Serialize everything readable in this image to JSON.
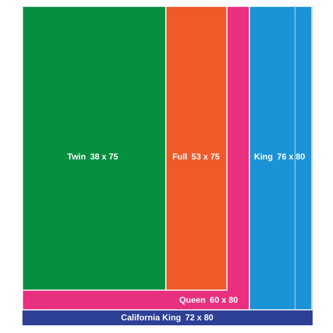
{
  "beds": [
    {
      "name": "Twin",
      "size": "38 x 75"
    },
    {
      "name": "Full",
      "size": "53 x 75"
    },
    {
      "name": "King",
      "size": "76 x 80"
    },
    {
      "name": "Queen",
      "size": "60 x 80"
    },
    {
      "name": "California King",
      "size": "72 x 80"
    }
  ]
}
